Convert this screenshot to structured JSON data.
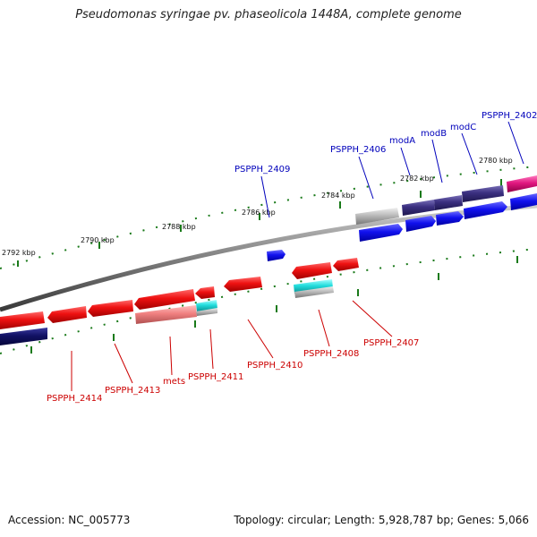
{
  "title": "Pseudomonas syringae pv. phaseolicola 1448A, complete genome",
  "footer": {
    "accession": "Accession: NC_005773",
    "stats": "Topology: circular; Length: 5,928,787 bp; Genes: 5,066"
  },
  "colors": {
    "backbone": "#808080",
    "tick_marks": "#1a7a1a",
    "forward_label": "#0000bb",
    "reverse_label": "#cc0000",
    "cds_red": "#ee1111",
    "cds_blue": "#1111ee",
    "cds_navy": "#3a2f80",
    "cds_magenta": "#e0177f",
    "cds_cyan": "#22dddd",
    "rna_gray": "#bbbbbb",
    "pink": "#f08080"
  },
  "ticks": [
    "2792 kbp",
    "2790 kbp",
    "2788 kbp",
    "2786 kbp",
    "2784 kbp",
    "2782 kbp",
    "2780 kbp"
  ],
  "forward_labels": [
    "PSPPH_2409",
    "PSPPH_2406",
    "modA",
    "modB",
    "modC",
    "PSPPH_2402"
  ],
  "reverse_labels": [
    "PSPPH_2414",
    "PSPPH_2413",
    "mets",
    "PSPPH_2411",
    "PSPPH_2410",
    "PSPPH_2408",
    "PSPPH_2407"
  ]
}
